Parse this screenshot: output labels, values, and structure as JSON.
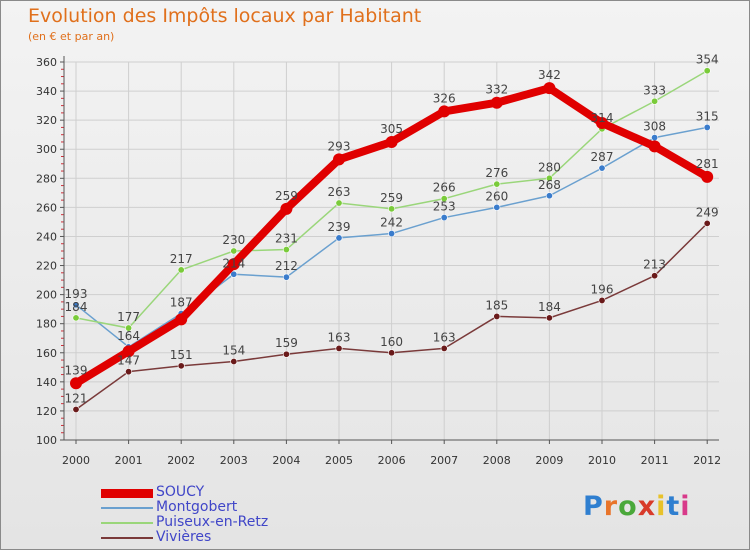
{
  "header": {
    "title": "Evolution des Impôts locaux par Habitant",
    "subtitle": "(en € et par an)"
  },
  "logo": {
    "text": "Proxiti",
    "letter_colors": [
      "#2f7fd0",
      "#e8742a",
      "#4aa83a",
      "#d83a2a",
      "#e8c22a",
      "#2f7fd0",
      "#d83a8a"
    ]
  },
  "colors": {
    "axis": "#555555",
    "grid": "#cfcfcf",
    "tick_minor": "#d0303a",
    "value_label": "#444444"
  },
  "chart_data": {
    "type": "line",
    "x": [
      "2000",
      "2001",
      "2002",
      "2003",
      "2004",
      "2005",
      "2006",
      "2007",
      "2008",
      "2009",
      "2010",
      "2011",
      "2012"
    ],
    "ylim": [
      100,
      360
    ],
    "yticks": [
      100,
      120,
      140,
      160,
      180,
      200,
      220,
      240,
      260,
      280,
      300,
      320,
      340,
      360
    ],
    "grid": true,
    "legend_position": "bottom-left",
    "series": [
      {
        "name": "SOUCY",
        "color": "#e00000",
        "marker": "#e00000",
        "width": 8,
        "values": [
          139,
          161,
          183,
          221,
          259,
          293,
          305,
          326,
          332,
          342,
          318,
          302,
          281
        ],
        "labels": [
          "139",
          "",
          "",
          "",
          "259",
          "293",
          "305",
          "326",
          "332",
          "342",
          "",
          "",
          "281"
        ]
      },
      {
        "name": "Montgobert",
        "color": "#6aa0cf",
        "marker": "#3a7ccc",
        "width": 1.5,
        "values": [
          193,
          164,
          187,
          214,
          212,
          239,
          242,
          253,
          260,
          268,
          287,
          308,
          315
        ],
        "labels": [
          "193",
          "164",
          "187",
          "214",
          "212",
          "239",
          "242",
          "253",
          "260",
          "268",
          "287",
          "308",
          "315"
        ]
      },
      {
        "name": "Puiseux-en-Retz",
        "color": "#9ad67a",
        "marker": "#7acb3a",
        "width": 1.5,
        "values": [
          184,
          177,
          217,
          230,
          231,
          263,
          259,
          266,
          276,
          280,
          314,
          333,
          354
        ],
        "labels": [
          "184",
          "177",
          "217",
          "230",
          "231",
          "263",
          "259",
          "266",
          "276",
          "280",
          "314",
          "333",
          "354"
        ]
      },
      {
        "name": "Vivières",
        "color": "#7a3a3a",
        "marker": "#6a1a1a",
        "width": 1.5,
        "values": [
          121,
          147,
          151,
          154,
          159,
          163,
          160,
          163,
          185,
          184,
          196,
          213,
          249
        ],
        "labels": [
          "121",
          "147",
          "151",
          "154",
          "159",
          "163",
          "160",
          "163",
          "185",
          "184",
          "196",
          "213",
          "249"
        ]
      }
    ]
  }
}
